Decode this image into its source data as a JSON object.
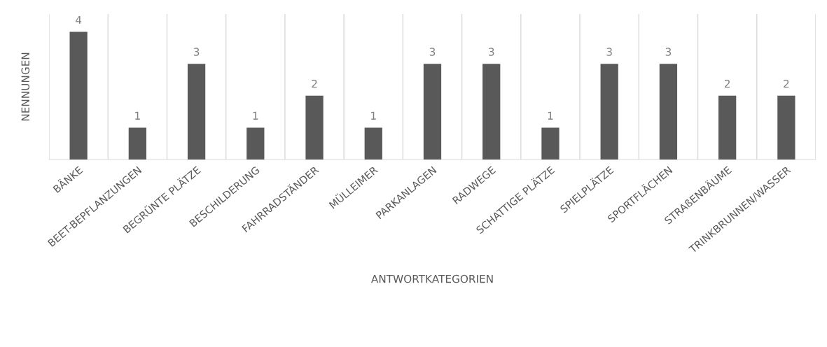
{
  "chart_data": {
    "type": "bar",
    "xlabel": "ANTWORTKATEGORIEN",
    "ylabel": "NENNUNGEN",
    "categories": [
      "BÄNKE",
      "BEET-BEPFLANZUNGEN",
      "BEGRÜNTE PLÄTZE",
      "BESCHILDERUNG",
      "FAHRRADSTÄNDER",
      "MÜLLEIMER",
      "PARKANLAGEN",
      "RADWEGE",
      "SCHATTIGE PLÄTZE",
      "SPIELPLÄTZE",
      "SPORTFLÄCHEN",
      "STRAßENBÄUME",
      "TRINKBRUNNEN/WASSER"
    ],
    "values": [
      4,
      1,
      3,
      1,
      2,
      1,
      3,
      3,
      1,
      3,
      3,
      2,
      2
    ],
    "color": "#595959",
    "data_labels": true,
    "grid": "x",
    "legend": false
  }
}
